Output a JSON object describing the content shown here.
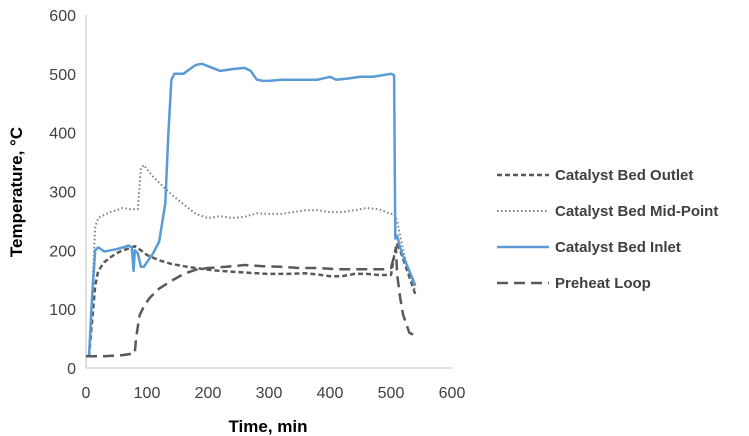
{
  "chart_data": {
    "type": "line",
    "title": "",
    "xlabel": "Time, min",
    "ylabel": "Temperature, °C",
    "xlim": [
      0,
      600
    ],
    "ylim": [
      0,
      600
    ],
    "x_ticks": [
      0,
      100,
      200,
      300,
      400,
      500,
      600
    ],
    "y_ticks": [
      0,
      100,
      200,
      300,
      400,
      500,
      600
    ],
    "grid": false,
    "legend_position": "right",
    "series": [
      {
        "name": "Catalyst Bed Outlet",
        "color": "#595959",
        "dash": "short-dash",
        "points": [
          [
            5,
            20
          ],
          [
            10,
            80
          ],
          [
            15,
            140
          ],
          [
            20,
            165
          ],
          [
            30,
            180
          ],
          [
            40,
            188
          ],
          [
            50,
            195
          ],
          [
            60,
            200
          ],
          [
            70,
            203
          ],
          [
            80,
            207
          ],
          [
            90,
            200
          ],
          [
            100,
            192
          ],
          [
            120,
            183
          ],
          [
            140,
            177
          ],
          [
            160,
            173
          ],
          [
            180,
            170
          ],
          [
            200,
            167
          ],
          [
            220,
            165
          ],
          [
            250,
            163
          ],
          [
            280,
            161
          ],
          [
            300,
            160
          ],
          [
            330,
            160
          ],
          [
            360,
            161
          ],
          [
            380,
            159
          ],
          [
            400,
            156
          ],
          [
            420,
            156
          ],
          [
            440,
            160
          ],
          [
            460,
            160
          ],
          [
            480,
            158
          ],
          [
            500,
            158
          ],
          [
            505,
            190
          ],
          [
            510,
            210
          ],
          [
            515,
            200
          ],
          [
            520,
            185
          ],
          [
            530,
            155
          ],
          [
            540,
            125
          ]
        ]
      },
      {
        "name": "Catalyst Bed Mid-Point",
        "color": "#7f7f7f",
        "dash": "dotted",
        "points": [
          [
            5,
            20
          ],
          [
            10,
            130
          ],
          [
            15,
            240
          ],
          [
            20,
            255
          ],
          [
            30,
            260
          ],
          [
            40,
            265
          ],
          [
            50,
            268
          ],
          [
            60,
            272
          ],
          [
            70,
            270
          ],
          [
            80,
            270
          ],
          [
            85,
            270
          ],
          [
            90,
            340
          ],
          [
            95,
            345
          ],
          [
            100,
            338
          ],
          [
            110,
            325
          ],
          [
            120,
            315
          ],
          [
            140,
            295
          ],
          [
            160,
            278
          ],
          [
            180,
            262
          ],
          [
            200,
            255
          ],
          [
            220,
            258
          ],
          [
            240,
            255
          ],
          [
            260,
            257
          ],
          [
            280,
            263
          ],
          [
            300,
            262
          ],
          [
            320,
            262
          ],
          [
            340,
            265
          ],
          [
            360,
            268
          ],
          [
            380,
            268
          ],
          [
            400,
            265
          ],
          [
            420,
            265
          ],
          [
            440,
            268
          ],
          [
            460,
            272
          ],
          [
            480,
            270
          ],
          [
            500,
            262
          ],
          [
            505,
            262
          ],
          [
            510,
            250
          ],
          [
            520,
            200
          ],
          [
            530,
            160
          ],
          [
            540,
            130
          ]
        ]
      },
      {
        "name": "Catalyst Bed Inlet",
        "color": "#5b9bd5",
        "dash": "solid",
        "points": [
          [
            5,
            20
          ],
          [
            10,
            120
          ],
          [
            15,
            200
          ],
          [
            20,
            205
          ],
          [
            30,
            198
          ],
          [
            40,
            200
          ],
          [
            50,
            202
          ],
          [
            60,
            205
          ],
          [
            70,
            208
          ],
          [
            75,
            205
          ],
          [
            78,
            165
          ],
          [
            80,
            200
          ],
          [
            85,
            195
          ],
          [
            90,
            172
          ],
          [
            95,
            172
          ],
          [
            100,
            180
          ],
          [
            110,
            195
          ],
          [
            120,
            215
          ],
          [
            130,
            280
          ],
          [
            135,
            400
          ],
          [
            140,
            490
          ],
          [
            145,
            500
          ],
          [
            160,
            500
          ],
          [
            170,
            508
          ],
          [
            180,
            515
          ],
          [
            190,
            517
          ],
          [
            200,
            513
          ],
          [
            220,
            505
          ],
          [
            240,
            508
          ],
          [
            260,
            510
          ],
          [
            270,
            505
          ],
          [
            280,
            490
          ],
          [
            290,
            488
          ],
          [
            300,
            488
          ],
          [
            320,
            490
          ],
          [
            350,
            490
          ],
          [
            380,
            490
          ],
          [
            400,
            495
          ],
          [
            410,
            490
          ],
          [
            430,
            492
          ],
          [
            450,
            495
          ],
          [
            470,
            495
          ],
          [
            500,
            500
          ],
          [
            505,
            498
          ],
          [
            507,
            220
          ],
          [
            510,
            225
          ],
          [
            515,
            205
          ],
          [
            520,
            190
          ],
          [
            530,
            165
          ],
          [
            540,
            140
          ]
        ]
      },
      {
        "name": "Preheat Loop",
        "color": "#595959",
        "dash": "long-dash",
        "points": [
          [
            0,
            20
          ],
          [
            30,
            20
          ],
          [
            60,
            22
          ],
          [
            80,
            25
          ],
          [
            82,
            50
          ],
          [
            85,
            70
          ],
          [
            88,
            90
          ],
          [
            95,
            105
          ],
          [
            105,
            120
          ],
          [
            120,
            135
          ],
          [
            140,
            148
          ],
          [
            160,
            160
          ],
          [
            180,
            167
          ],
          [
            200,
            170
          ],
          [
            230,
            172
          ],
          [
            260,
            175
          ],
          [
            290,
            173
          ],
          [
            320,
            172
          ],
          [
            350,
            170
          ],
          [
            380,
            170
          ],
          [
            410,
            168
          ],
          [
            440,
            168
          ],
          [
            470,
            168
          ],
          [
            490,
            168
          ],
          [
            500,
            170
          ],
          [
            505,
            190
          ],
          [
            508,
            205
          ],
          [
            510,
            160
          ],
          [
            515,
            120
          ],
          [
            520,
            90
          ],
          [
            530,
            60
          ],
          [
            540,
            55
          ]
        ]
      }
    ]
  }
}
